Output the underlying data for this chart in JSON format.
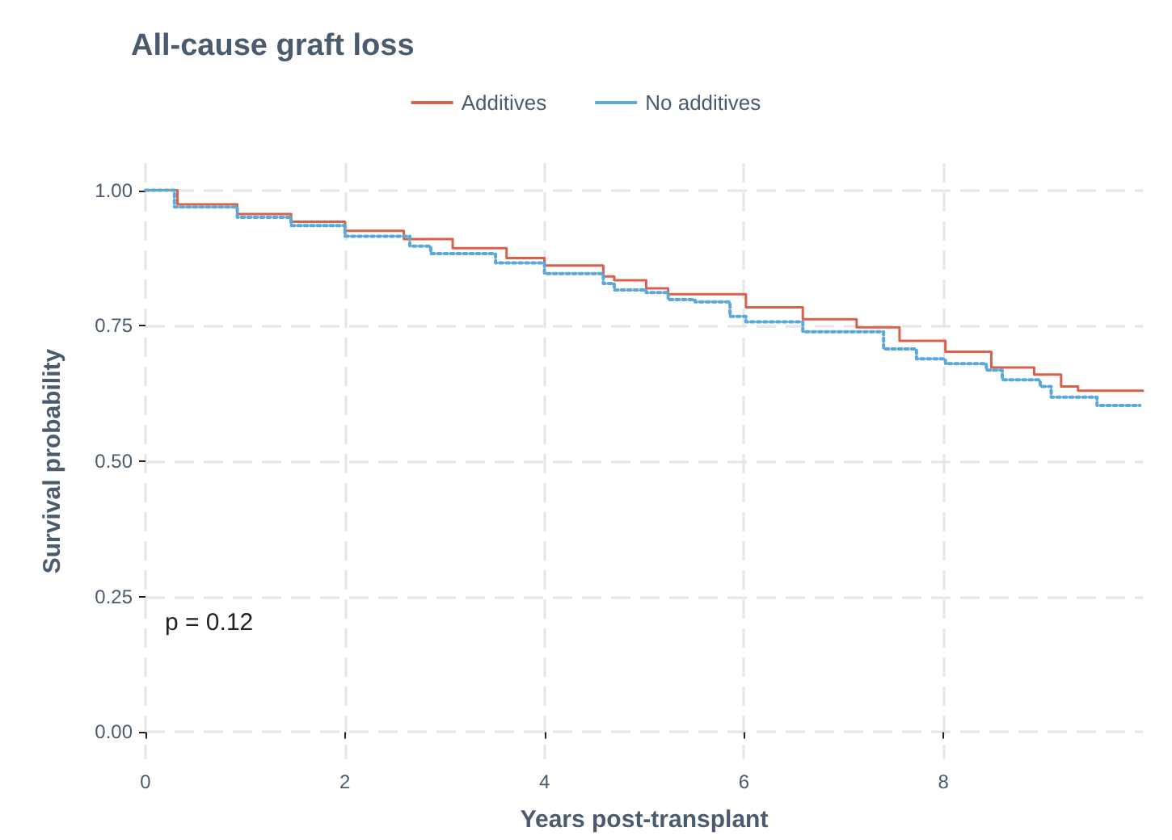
{
  "chart_data": {
    "type": "step",
    "title": "All-cause graft loss",
    "xlabel": "Years post-transplant",
    "ylabel": "Survival probability",
    "xlim": [
      0,
      10
    ],
    "xticks": [
      0,
      2,
      4,
      6,
      8
    ],
    "ylim": [
      -0.05,
      1.05
    ],
    "yticks": [
      {
        "value": 0,
        "label": "0.00"
      },
      {
        "value": 0.25,
        "label": "0.25"
      },
      {
        "value": 0.5,
        "label": "0.50"
      },
      {
        "value": 0.75,
        "label": "0.75"
      },
      {
        "value": 1,
        "label": "1.00"
      }
    ],
    "grid": true,
    "legend": "top",
    "marker": "none",
    "annotations": [
      "p = 0.12"
    ],
    "series": [
      {
        "name": "Additives",
        "color": "#d9604a",
        "line_style": "solid",
        "x": [
          0,
          0.32,
          0.92,
          1.46,
          2.0,
          2.59,
          3.08,
          3.62,
          4.0,
          4.59,
          4.7,
          5.02,
          5.24,
          6.02,
          6.59,
          7.13,
          7.56,
          8.02,
          8.48,
          8.91,
          9.18,
          9.35,
          10.0
        ],
        "values": [
          1.0,
          0.974,
          0.956,
          0.942,
          0.925,
          0.91,
          0.893,
          0.875,
          0.861,
          0.841,
          0.834,
          0.819,
          0.808,
          0.784,
          0.762,
          0.747,
          0.722,
          0.702,
          0.673,
          0.66,
          0.638,
          0.63,
          0.63
        ]
      },
      {
        "name": "No additives",
        "color": "#5aa9d8",
        "line_style": "dotted",
        "x": [
          0,
          0.29,
          0.92,
          1.46,
          2.0,
          2.65,
          2.86,
          3.51,
          4.0,
          4.59,
          4.7,
          5.02,
          5.24,
          5.51,
          5.86,
          6.02,
          6.59,
          7.4,
          7.73,
          8.02,
          8.43,
          8.59,
          8.97,
          9.08,
          9.51,
          9.54,
          9.97
        ],
        "values": [
          1.0,
          0.969,
          0.95,
          0.935,
          0.915,
          0.897,
          0.883,
          0.866,
          0.846,
          0.828,
          0.816,
          0.811,
          0.798,
          0.794,
          0.767,
          0.757,
          0.739,
          0.707,
          0.689,
          0.68,
          0.668,
          0.65,
          0.638,
          0.618,
          0.618,
          0.603,
          0.603
        ]
      }
    ]
  }
}
